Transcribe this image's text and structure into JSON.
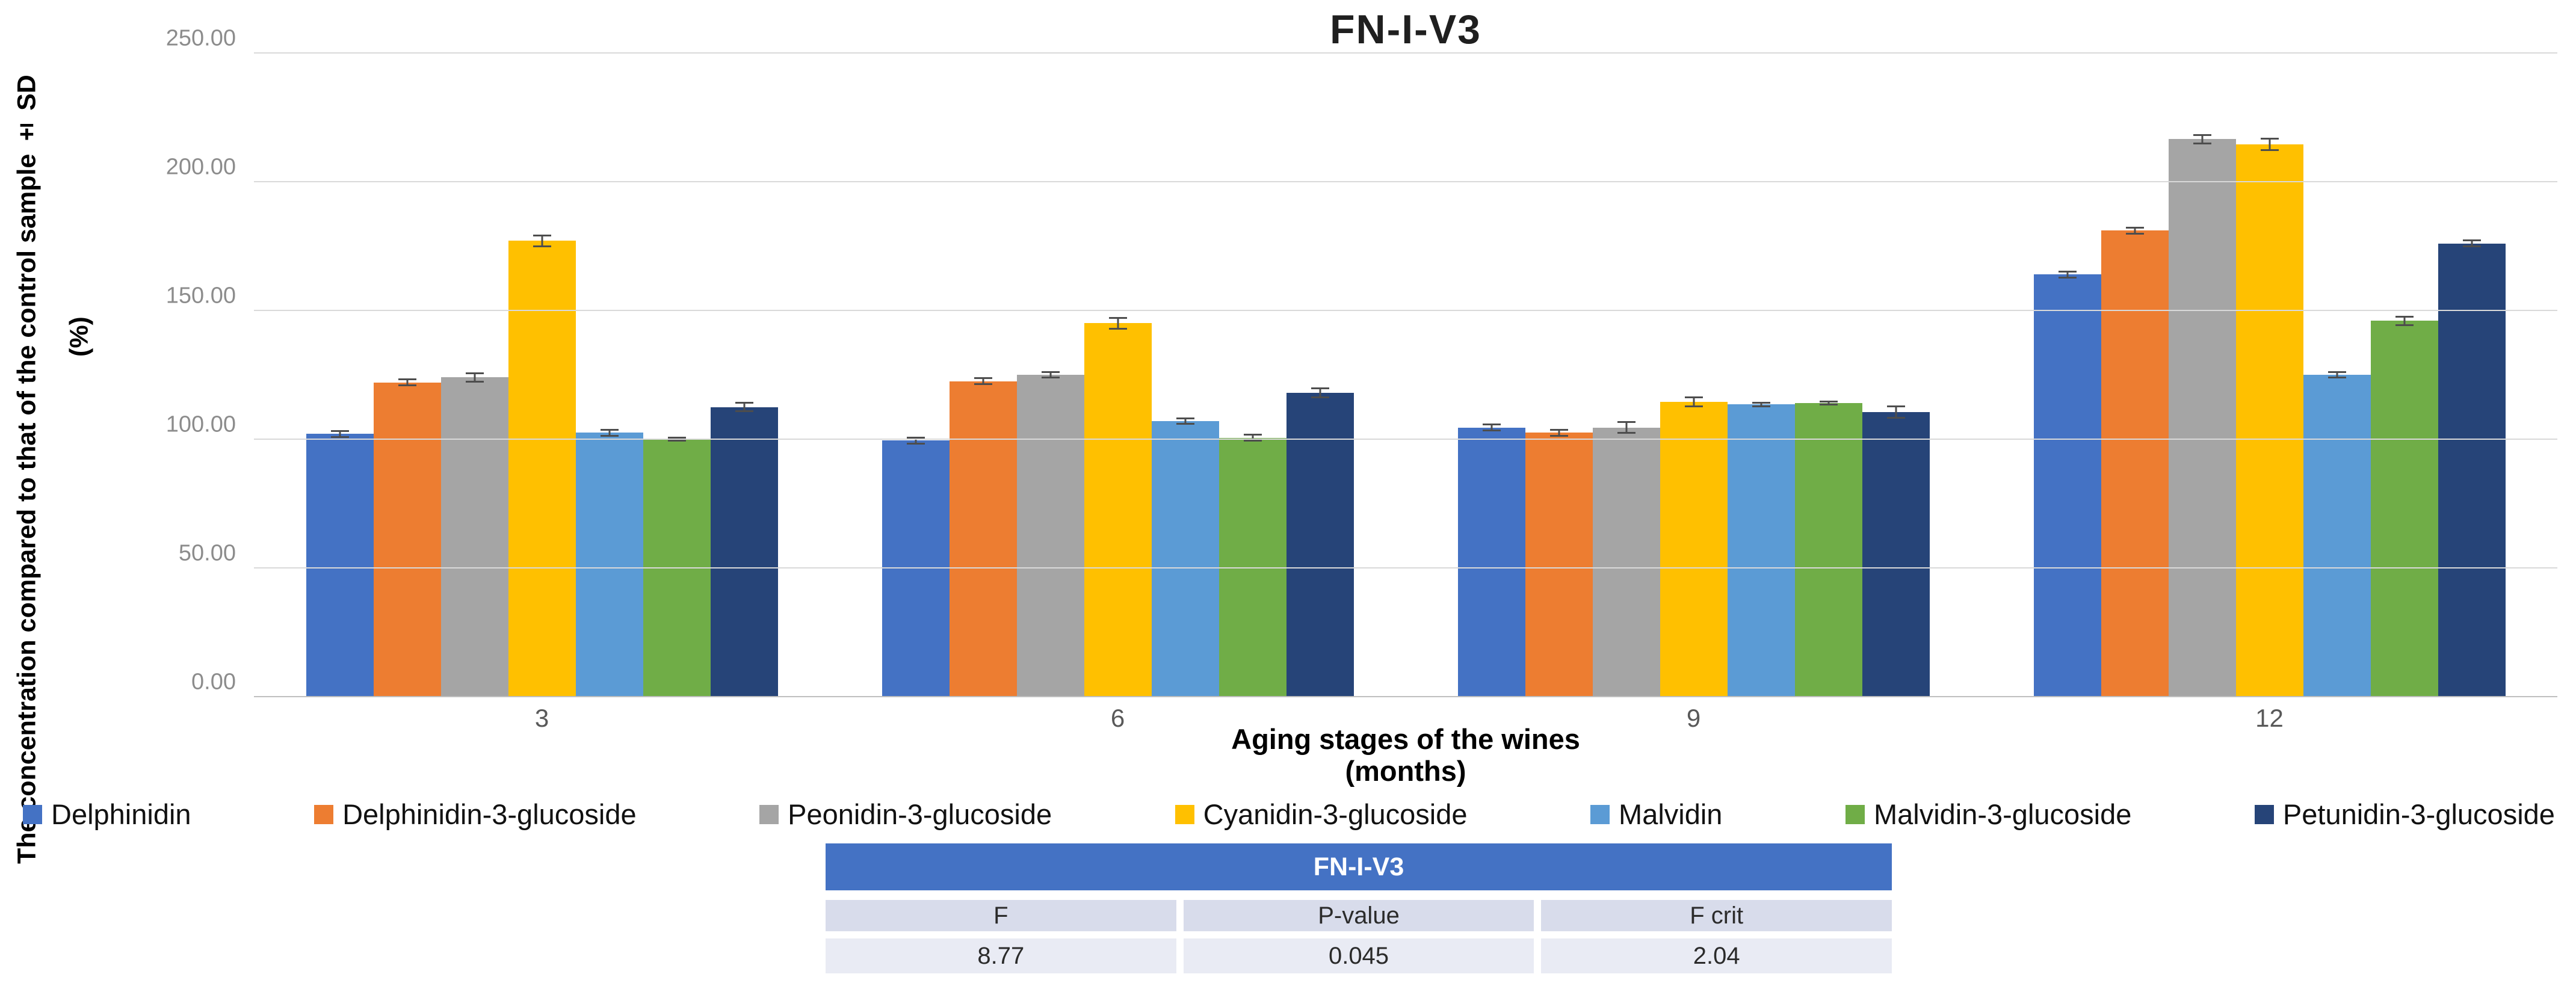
{
  "title": "FN-I-V3",
  "y_axis": {
    "title": "The concentration compared to that of the control sample ± SD",
    "unit": "(%)",
    "ticks": [
      0,
      50,
      100,
      150,
      200,
      250
    ],
    "tick_decimals": 2
  },
  "x_axis": {
    "title_line1": "Aging stages of the wines",
    "title_line2": "(months)"
  },
  "chart_data": {
    "type": "bar",
    "title": "FN-I-V3",
    "xlabel": "Aging stages of the wines (months)",
    "ylabel": "The concentration compared to that of the control sample ± SD (%)",
    "ylim": [
      0,
      250
    ],
    "grid": true,
    "legend_position": "bottom",
    "error_bars": true,
    "categories": [
      "3",
      "6",
      "9",
      "12"
    ],
    "series": [
      {
        "name": "Delphinidin",
        "color": "#4472C4",
        "values": [
          102.0,
          99.5,
          104.5,
          164.0
        ],
        "sd": [
          1.5,
          1.5,
          1.5,
          1.5
        ]
      },
      {
        "name": "Delphinidin-3-glucoside",
        "color": "#ED7D31",
        "values": [
          122.0,
          122.5,
          102.5,
          181.0
        ],
        "sd": [
          1.5,
          1.5,
          1.5,
          1.5
        ]
      },
      {
        "name": "Peonidin-3-glucoside",
        "color": "#A5A5A5",
        "values": [
          124.0,
          125.0,
          104.5,
          216.5
        ],
        "sd": [
          2.0,
          1.5,
          2.5,
          2.0
        ]
      },
      {
        "name": "Cyanidin-3-glucoside",
        "color": "#FFC000",
        "values": [
          177.0,
          145.0,
          114.5,
          214.5
        ],
        "sd": [
          2.5,
          2.5,
          2.0,
          2.5
        ]
      },
      {
        "name": "Malvidin",
        "color": "#5B9BD5",
        "values": [
          102.5,
          107.0,
          113.5,
          125.0
        ],
        "sd": [
          1.5,
          1.5,
          1.0,
          1.5
        ]
      },
      {
        "name": "Malvidin-3-glucoside",
        "color": "#70AD47",
        "values": [
          100.0,
          100.5,
          114.0,
          146.0
        ],
        "sd": [
          1.0,
          1.5,
          1.0,
          2.0
        ]
      },
      {
        "name": "Petunidin-3-glucoside",
        "color": "#264478",
        "values": [
          112.5,
          118.0,
          110.5,
          176.0
        ],
        "sd": [
          2.0,
          2.0,
          2.5,
          1.5
        ]
      }
    ]
  },
  "stats_table": {
    "title": "FN-I-V3",
    "headers": [
      "F",
      "P-value",
      "F crit"
    ],
    "values": [
      "8.77",
      "0.045",
      "2.04"
    ],
    "header_bg": "#4472C4",
    "row1_bg": "#D8DCEB",
    "row2_bg": "#E9EBF4"
  },
  "colors": {
    "gridline": "#D9D9D9",
    "axis_line": "#BFBFBF",
    "tick_label": "#8C8C8C",
    "category_label": "#595959",
    "error_bar": "#4D4D4D"
  }
}
